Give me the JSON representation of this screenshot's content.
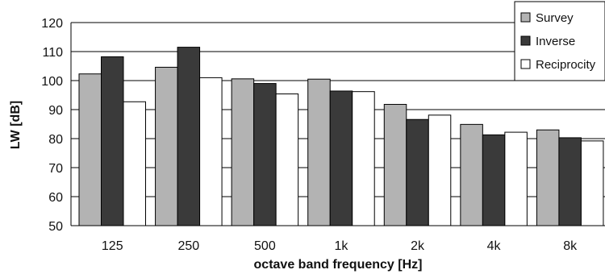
{
  "chart_data": {
    "type": "bar",
    "title": "",
    "xlabel": "octave band frequency [Hz]",
    "ylabel": "LW [dB]",
    "ylim": [
      50,
      120
    ],
    "yticks": [
      50,
      60,
      70,
      80,
      90,
      100,
      110,
      120
    ],
    "categories": [
      "125",
      "250",
      "500",
      "1k",
      "2k",
      "4k",
      "8k"
    ],
    "series": [
      {
        "name": "Survey",
        "color": "#b3b3b3",
        "values": [
          102.3,
          104.6,
          100.6,
          100.5,
          91.8,
          84.9,
          83.0
        ]
      },
      {
        "name": "Inverse",
        "color": "#3a3a3a",
        "values": [
          108.2,
          111.5,
          99.0,
          96.4,
          86.6,
          81.3,
          80.3
        ]
      },
      {
        "name": "Reciprocity",
        "color": "#ffffff",
        "values": [
          92.7,
          101.0,
          95.4,
          96.2,
          88.1,
          82.2,
          79.2
        ]
      }
    ],
    "grid": true,
    "legend": "top-right"
  }
}
